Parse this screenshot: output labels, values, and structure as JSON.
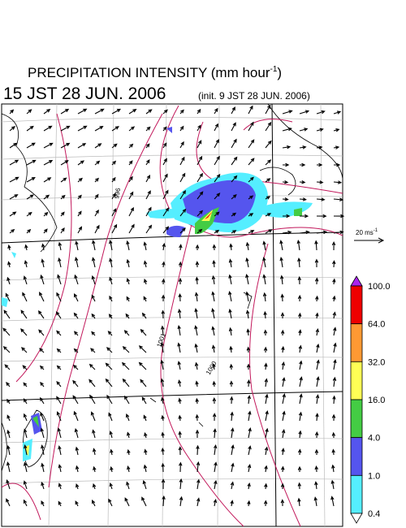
{
  "header": {
    "title": {
      "text": "PRECIPITATION INTENSITY (mm hour",
      "superscript": "-1",
      "suffix": ")"
    },
    "time": "15 JST 28 JUN. 2006",
    "init": "(init. 9 JST 28 JUN. 2006)"
  },
  "map": {
    "contour_labels": [
      "996",
      "1001",
      "1000"
    ]
  },
  "scale_arrow": {
    "label": "20 ms",
    "superscript": "-1"
  },
  "colorbar": {
    "labels": [
      "100.0",
      "64.0",
      "32.0",
      "16.0",
      "4.0",
      "1.0",
      "0.4"
    ],
    "colors": [
      "#ee0000",
      "#ff9933",
      "#ffff55",
      "#44cc44",
      "#5555ee",
      "#55eeff"
    ],
    "over_color": "#aa22ee",
    "under_color": "#ffffff"
  }
}
